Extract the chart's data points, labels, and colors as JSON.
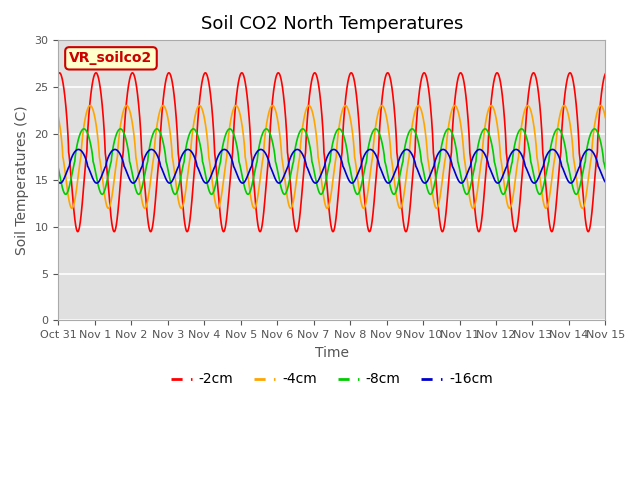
{
  "title": "Soil CO2 North Temperatures",
  "xlabel": "Time",
  "ylabel": "Soil Temperatures (C)",
  "xlim_days": [
    0,
    15
  ],
  "ylim": [
    0,
    30
  ],
  "yticks": [
    0,
    5,
    10,
    15,
    20,
    25,
    30
  ],
  "xtick_labels": [
    "Oct 31",
    "Nov 1",
    "Nov 2",
    "Nov 3",
    "Nov 4",
    "Nov 5",
    "Nov 6",
    "Nov 7",
    "Nov 8",
    "Nov 9",
    "Nov 10",
    "Nov 11",
    "Nov 12",
    "Nov 13",
    "Nov 14",
    "Nov 15"
  ],
  "bg_color": "#e0e0e0",
  "line_colors": [
    "#ff0000",
    "#ffa500",
    "#00cc00",
    "#0000cc"
  ],
  "line_labels": [
    "-2cm",
    "-4cm",
    "-8cm",
    "-16cm"
  ],
  "vr_label": "VR_soilco2",
  "vr_bg": "#ffffcc",
  "vr_edge": "#cc0000",
  "vr_text_color": "#cc0000",
  "points_per_day": 200
}
